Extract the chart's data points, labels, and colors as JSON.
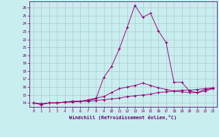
{
  "title": "",
  "xlabel": "Windchill (Refroidissement éolien,°C)",
  "bg_color": "#c8eef0",
  "line_color": "#990077",
  "grid_color": "#b0c8cc",
  "xmin": -0.5,
  "xmax": 23.5,
  "ymin": 13.5,
  "ymax": 26.8,
  "yticks": [
    14,
    15,
    16,
    17,
    18,
    19,
    20,
    21,
    22,
    23,
    24,
    25,
    26
  ],
  "xticks": [
    0,
    1,
    2,
    3,
    4,
    5,
    6,
    7,
    8,
    9,
    10,
    11,
    12,
    13,
    14,
    15,
    16,
    17,
    18,
    19,
    20,
    21,
    22,
    23
  ],
  "series1_x": [
    0,
    1,
    2,
    3,
    4,
    5,
    6,
    7,
    8,
    9,
    10,
    11,
    12,
    13,
    14,
    15,
    16,
    17,
    18,
    19,
    20,
    21,
    22,
    23
  ],
  "series1_y": [
    14.0,
    13.8,
    14.0,
    14.0,
    14.1,
    14.2,
    14.2,
    14.3,
    14.5,
    17.2,
    18.6,
    20.8,
    23.5,
    26.3,
    24.8,
    25.3,
    23.1,
    21.6,
    16.6,
    16.6,
    15.5,
    15.3,
    15.7,
    15.8
  ],
  "series2_x": [
    0,
    1,
    2,
    3,
    4,
    5,
    6,
    7,
    8,
    9,
    10,
    11,
    12,
    13,
    14,
    15,
    16,
    17,
    18,
    19,
    20,
    21,
    22,
    23
  ],
  "series2_y": [
    14.0,
    13.8,
    14.0,
    14.0,
    14.1,
    14.2,
    14.2,
    14.4,
    14.6,
    14.8,
    15.3,
    15.8,
    16.0,
    16.2,
    16.5,
    16.2,
    15.9,
    15.7,
    15.5,
    15.4,
    15.3,
    15.3,
    15.5,
    15.8
  ],
  "series3_x": [
    0,
    1,
    2,
    3,
    4,
    5,
    6,
    7,
    8,
    9,
    10,
    11,
    12,
    13,
    14,
    15,
    16,
    17,
    18,
    19,
    20,
    21,
    22,
    23
  ],
  "series3_y": [
    14.0,
    13.9,
    14.0,
    14.0,
    14.1,
    14.1,
    14.2,
    14.2,
    14.3,
    14.4,
    14.5,
    14.6,
    14.8,
    14.9,
    15.0,
    15.1,
    15.3,
    15.4,
    15.5,
    15.6,
    15.6,
    15.7,
    15.8,
    15.9
  ]
}
